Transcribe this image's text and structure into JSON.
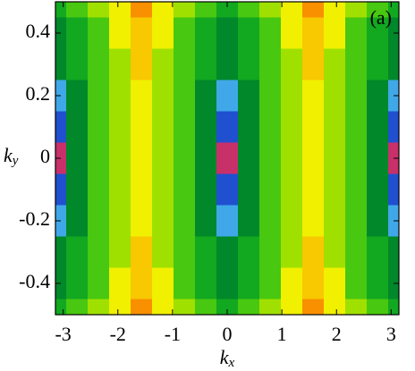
{
  "chart_data": {
    "type": "contour",
    "annotation": "(a)",
    "xlabel": [
      "k",
      "x"
    ],
    "ylabel": [
      "k",
      "y"
    ],
    "x": [
      -3.1416,
      -2.7489,
      -2.3562,
      -1.9635,
      -1.5708,
      -1.1781,
      -0.7854,
      -0.3927,
      0,
      0.3927,
      0.7854,
      1.1781,
      1.5708,
      1.9635,
      2.3562,
      2.7489,
      3.1416
    ],
    "y": [
      0.5,
      0.4,
      0.3,
      0.2,
      0.1,
      0,
      -0.1,
      -0.2,
      -0.3,
      -0.4,
      -0.5
    ],
    "z": [
      [
        5,
        6,
        7,
        8,
        10,
        8,
        7,
        6,
        5,
        6,
        7,
        8,
        10,
        8,
        7,
        6,
        5
      ],
      [
        4.5,
        5.5,
        6.5,
        8,
        9.5,
        8,
        6.5,
        5.5,
        4.5,
        5.5,
        6.5,
        8,
        9.5,
        8,
        6.5,
        5.5,
        4.5
      ],
      [
        4,
        5,
        6.5,
        7.5,
        9,
        7.5,
        6.5,
        5,
        4,
        5,
        6.5,
        7.5,
        9,
        7.5,
        6.5,
        5,
        4
      ],
      [
        3.5,
        4.5,
        6,
        7.5,
        8.5,
        7.5,
        6,
        4.5,
        3.5,
        4.5,
        6,
        7.5,
        8.5,
        7.5,
        6,
        4.5,
        3.5
      ],
      [
        2.5,
        4.5,
        6,
        7.5,
        8,
        7.5,
        6,
        4.5,
        2.5,
        4.5,
        6,
        7.5,
        8,
        7.5,
        6,
        4.5,
        2.5
      ],
      [
        0.5,
        4.5,
        6,
        7.5,
        8,
        7.5,
        6,
        4.5,
        0.5,
        4.5,
        6,
        7.5,
        8,
        7.5,
        6,
        4.5,
        0.5
      ],
      [
        2.5,
        4.5,
        6,
        7.5,
        8,
        7.5,
        6,
        4.5,
        2.5,
        4.5,
        6,
        7.5,
        8,
        7.5,
        6,
        4.5,
        2.5
      ],
      [
        3.5,
        4.5,
        6,
        7.5,
        8.5,
        7.5,
        6,
        4.5,
        3.5,
        4.5,
        6,
        7.5,
        8.5,
        7.5,
        6,
        4.5,
        3.5
      ],
      [
        4,
        5,
        6.5,
        7.5,
        9,
        7.5,
        6.5,
        5,
        4,
        5,
        6.5,
        7.5,
        9,
        7.5,
        6.5,
        5,
        4
      ],
      [
        4.5,
        5.5,
        6.5,
        8,
        9.5,
        8,
        6.5,
        5.5,
        4.5,
        5.5,
        6.5,
        8,
        9.5,
        8,
        6.5,
        5.5,
        4.5
      ],
      [
        5,
        6,
        7,
        8,
        10,
        8,
        7,
        6,
        5,
        6,
        7,
        8,
        10,
        8,
        7,
        6,
        5
      ]
    ],
    "colors": [
      "#c8306a",
      "#1a0a8a",
      "#2050d0",
      "#40a8e8",
      "#00882a",
      "#12a820",
      "#48c810",
      "#a0e000",
      "#f0f000",
      "#f8c800",
      "#f89000"
    ],
    "xlim": [
      -3.1416,
      3.1416
    ],
    "ylim": [
      -0.5,
      0.5
    ],
    "xticks": [
      -3,
      -2,
      -1,
      0,
      1,
      2,
      3
    ],
    "yticks": [
      -0.4,
      -0.2,
      0,
      0.2,
      0.4
    ]
  }
}
